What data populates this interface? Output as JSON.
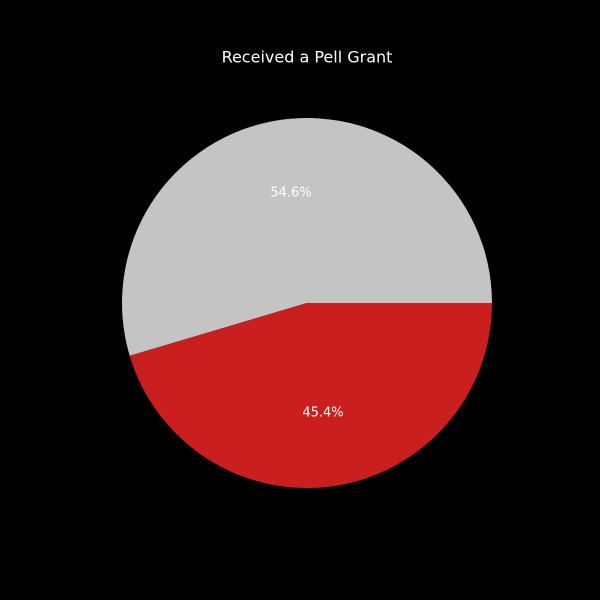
{
  "chart_data": {
    "type": "pie",
    "title": "Received a Pell Grant",
    "values": [
      54.6,
      45.4
    ],
    "value_labels": [
      "54.6%",
      "45.4%"
    ],
    "colors": [
      "#c4c4c4",
      "#c91f1f"
    ],
    "start_angle": 0,
    "counterclockwise": true
  }
}
